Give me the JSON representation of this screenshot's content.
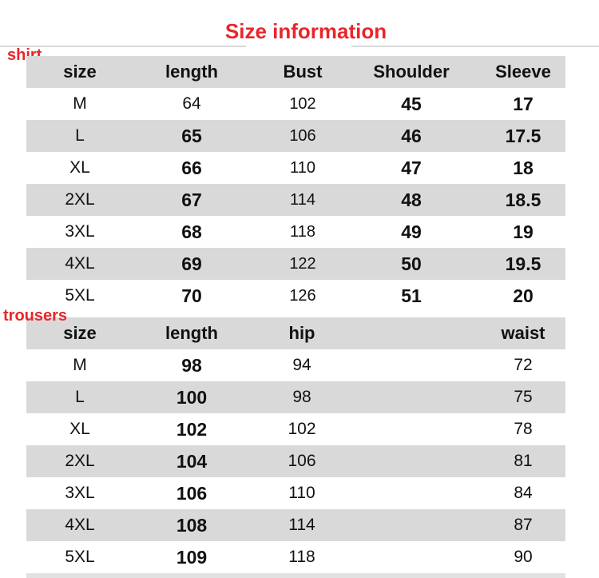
{
  "title": "Size information",
  "shirt": {
    "label": "shirt",
    "headers": [
      "size",
      "length",
      "Bust",
      "Shoulder",
      "Sleeve"
    ],
    "rows": [
      [
        "M",
        "64",
        "102",
        "45",
        "17"
      ],
      [
        "L",
        "65",
        "106",
        "46",
        "17.5"
      ],
      [
        "XL",
        "66",
        "110",
        "47",
        "18"
      ],
      [
        "2XL",
        "67",
        "114",
        "48",
        "18.5"
      ],
      [
        "3XL",
        "68",
        "118",
        "49",
        "19"
      ],
      [
        "4XL",
        "69",
        "122",
        "50",
        "19.5"
      ],
      [
        "5XL",
        "70",
        "126",
        "51",
        "20"
      ]
    ]
  },
  "trousers": {
    "label": "trousers",
    "headers": [
      "size",
      "length",
      "hip",
      "waist"
    ],
    "rows": [
      [
        "M",
        "98",
        "94",
        "72"
      ],
      [
        "L",
        "100",
        "98",
        "75"
      ],
      [
        "XL",
        "102",
        "102",
        "78"
      ],
      [
        "2XL",
        "104",
        "106",
        "81"
      ],
      [
        "3XL",
        "106",
        "110",
        "84"
      ],
      [
        "4XL",
        "108",
        "114",
        "87"
      ],
      [
        "5XL",
        "109",
        "118",
        "90"
      ]
    ]
  },
  "colors": {
    "accent": "#e8262a",
    "stripe": "#d9d9d9"
  }
}
